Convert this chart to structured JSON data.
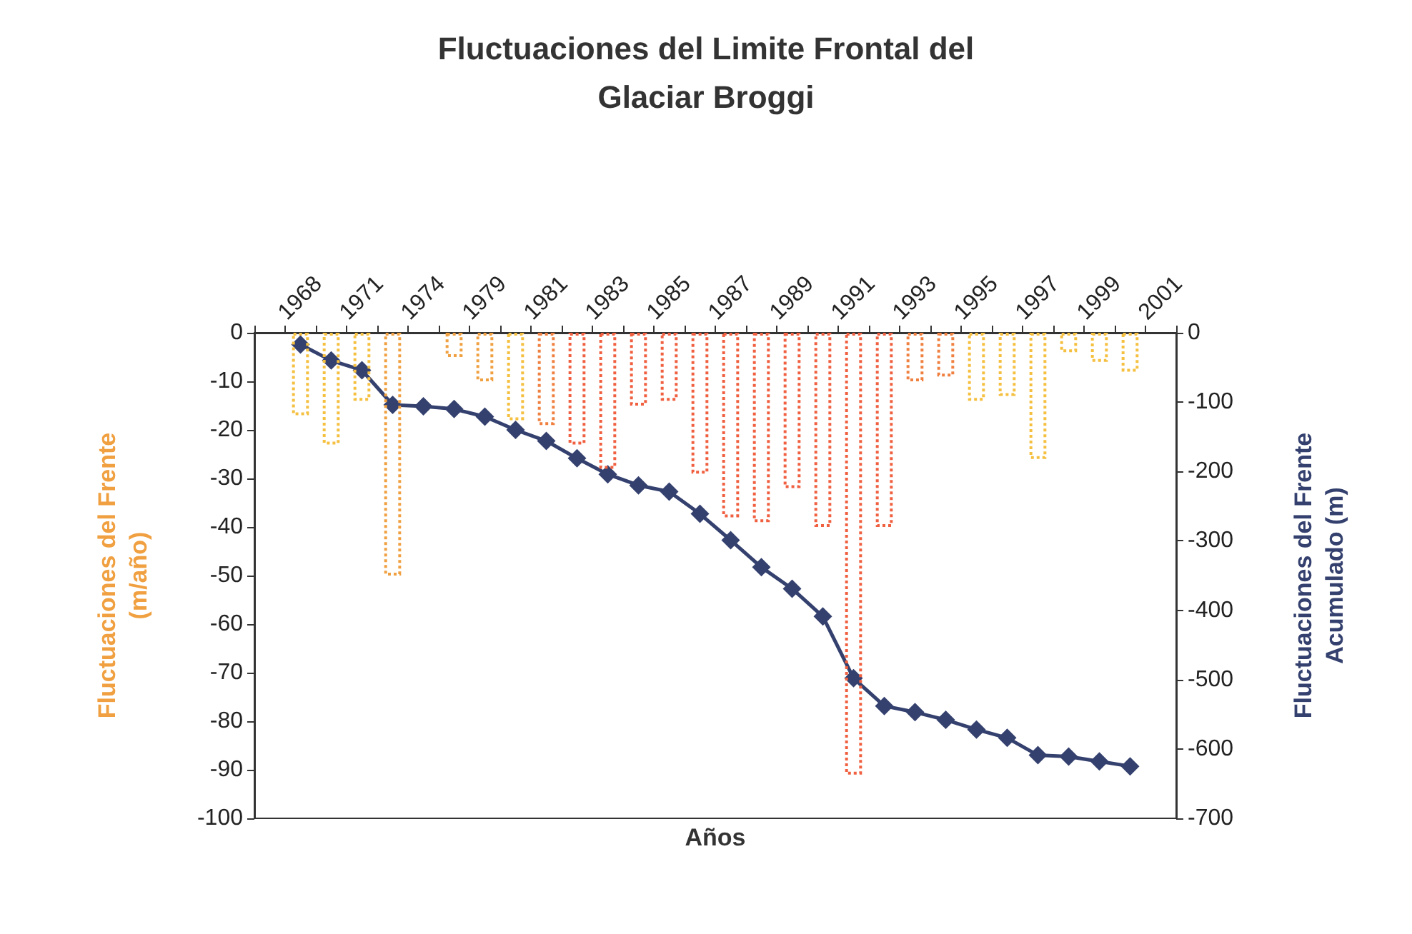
{
  "chart_data": {
    "type": "bar",
    "title": "Fluctuaciones del Limite Frontal del\nGlaciar Broggi",
    "xlabel": "Años",
    "ylabel": "Fluctuaciones del Frente\n(m/año)",
    "y2label": "Fluctuaciones del Frente\nAcumulado (m)",
    "categories": [
      null,
      "1968",
      null,
      "1971",
      null,
      "1974",
      null,
      "1979",
      null,
      "1981",
      null,
      "1983",
      null,
      "1985",
      null,
      "1987",
      null,
      "1989",
      null,
      "1991",
      null,
      "1993",
      null,
      "1995",
      null,
      "1997",
      null,
      "1999",
      null,
      "2001"
    ],
    "series": [
      {
        "values": [
          null,
          -17,
          -23,
          -14,
          -50,
          null,
          -5,
          -10,
          -18,
          -19,
          -23,
          -28,
          -15,
          -14,
          -29,
          -38,
          -39,
          -32,
          -40,
          -91,
          -40,
          -10,
          -9,
          -14,
          -13,
          -26,
          -4,
          -6,
          -8,
          null
        ],
        "colors": [
          "#f5c040",
          "#f5c040",
          "#f5c040",
          "#f5c040",
          "#f0a040",
          "#f0a040",
          "#f0a040",
          "#f0a040",
          "#f5c040",
          "#f08040",
          "#f06040",
          "#f06040",
          "#f06040",
          "#f06040",
          "#f06040",
          "#f06040",
          "#f06040",
          "#f06040",
          "#f06040",
          "#f06040",
          "#f06040",
          "#f08040",
          "#f08040",
          "#f5c040",
          "#f5c040",
          "#f5c040",
          "#f5c040",
          "#f5c040",
          "#f5c040",
          "#f5c040"
        ],
        "line_style": "dotted"
      },
      {
        "type": "line",
        "axis": "y2",
        "color": "#34406e",
        "values": [
          null,
          -17,
          -40,
          -54,
          -104,
          -106,
          -110,
          -121,
          -140,
          -156,
          -181,
          -204,
          -220,
          -229,
          -261,
          -299,
          -338,
          -369,
          -409,
          -498,
          -538,
          -547,
          -558,
          -572,
          -584,
          -609,
          -611,
          -618,
          -625,
          null
        ]
      }
    ],
    "ylim": [
      -100,
      0
    ],
    "yticks": [
      -100,
      -90,
      -80,
      -70,
      -60,
      -50,
      -40,
      -30,
      -20,
      -10,
      0
    ],
    "y2lim": [
      -700,
      0
    ],
    "y2ticks": [
      -700,
      -600,
      -500,
      -400,
      -300,
      -200,
      -100,
      0
    ],
    "grid": false,
    "marker": "diamond"
  }
}
